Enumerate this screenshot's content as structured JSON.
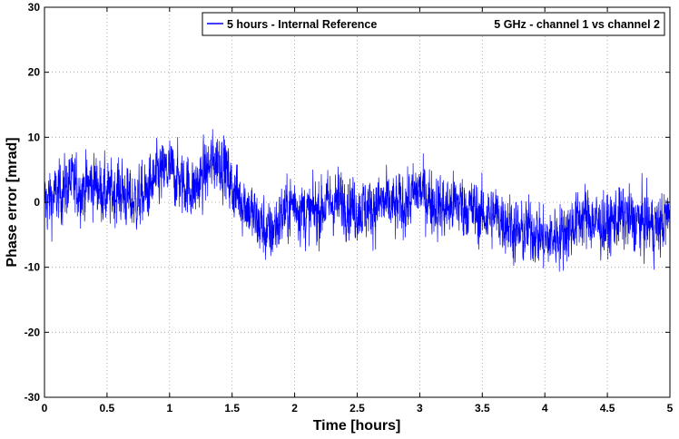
{
  "chart_data": {
    "type": "line",
    "xlabel": "Time [hours]",
    "ylabel": "Phase error [mrad]",
    "xlim": [
      0,
      5
    ],
    "ylim": [
      -30,
      30
    ],
    "x_ticks": [
      "0",
      "0.5",
      "1",
      "1.5",
      "2",
      "2.5",
      "3",
      "3.5",
      "4",
      "4.5",
      "5"
    ],
    "y_ticks": [
      "-30",
      "-20",
      "-10",
      "0",
      "10",
      "20",
      "30"
    ],
    "grid": true,
    "legend_position": "top-right",
    "annotation": "5 GHz - channel 1 vs channel 2",
    "series": [
      {
        "name": "5 hours - Internal Reference",
        "color": "#0000ff",
        "x": [
          0,
          0.1,
          0.2,
          0.3,
          0.4,
          0.5,
          0.6,
          0.7,
          0.8,
          0.9,
          1.0,
          1.1,
          1.2,
          1.3,
          1.35,
          1.4,
          1.45,
          1.5,
          1.6,
          1.7,
          1.8,
          1.9,
          2.0,
          2.1,
          2.2,
          2.3,
          2.4,
          2.5,
          2.6,
          2.7,
          2.8,
          2.9,
          3.0,
          3.1,
          3.2,
          3.3,
          3.4,
          3.5,
          3.6,
          3.7,
          3.8,
          3.9,
          4.0,
          4.1,
          4.2,
          4.3,
          4.4,
          4.5,
          4.6,
          4.7,
          4.8,
          4.9,
          5.0
        ],
        "y": [
          0,
          1,
          3,
          2,
          3,
          1,
          2,
          0,
          1,
          4,
          5,
          3,
          2,
          5,
          6,
          7,
          5,
          2,
          0,
          -3,
          -5,
          -2,
          0,
          -2,
          -1,
          0,
          0,
          -1,
          -1,
          0,
          -1,
          0,
          2,
          0,
          -1,
          0,
          -1,
          -2,
          -2,
          -3,
          -5,
          -4,
          -6,
          -5,
          -4,
          -2,
          -3,
          -4,
          -2,
          -3,
          -3,
          -4,
          -2
        ],
        "noise_amplitude_mrad": 4
      }
    ]
  }
}
